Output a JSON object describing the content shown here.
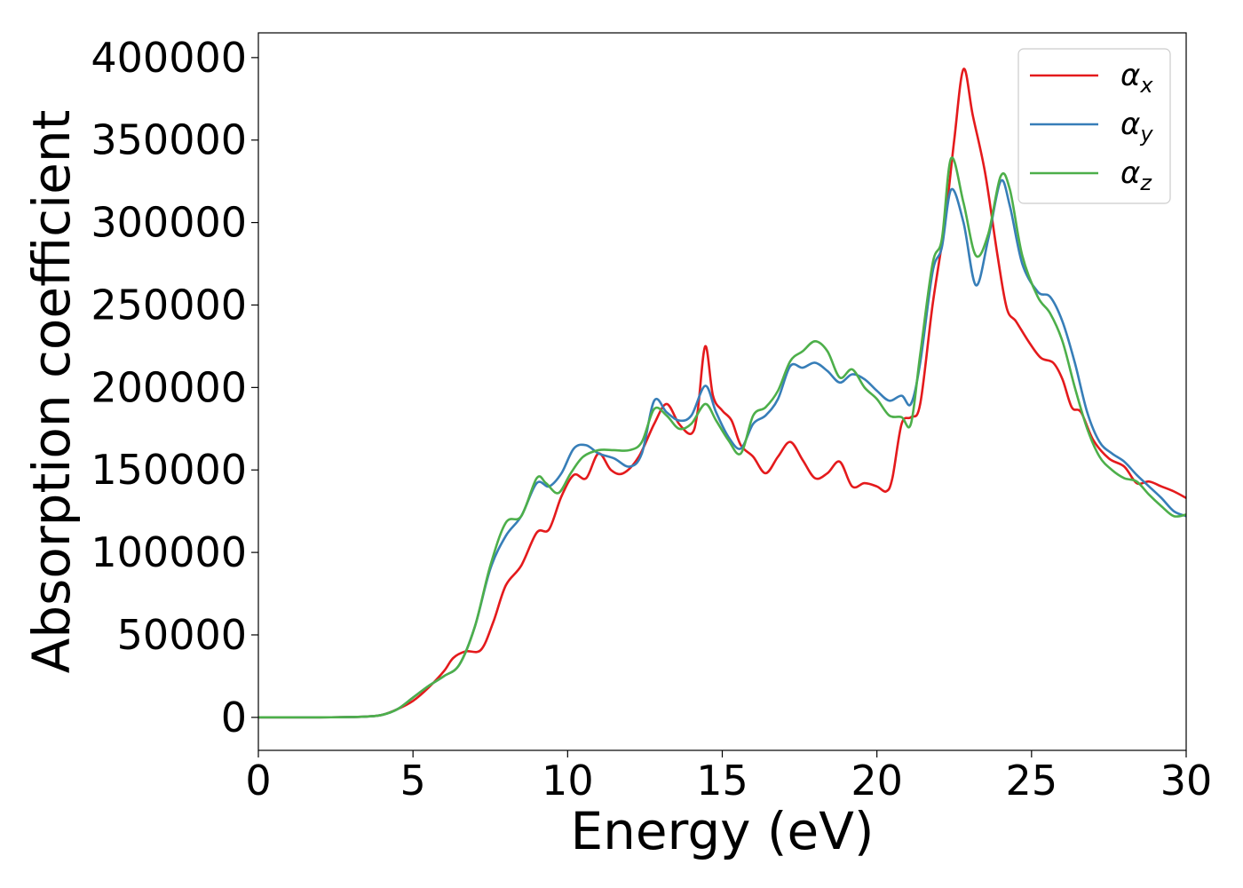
{
  "chart_data": {
    "type": "line",
    "xlabel": "Energy (eV)",
    "ylabel": "Absorption coefficient",
    "xlim": [
      0,
      30
    ],
    "ylim": [
      -20000,
      415000
    ],
    "xticks": [
      0,
      5,
      10,
      15,
      20,
      25,
      30
    ],
    "yticks": [
      0,
      50000,
      100000,
      150000,
      200000,
      250000,
      300000,
      350000,
      400000
    ],
    "xtick_labels": [
      "0",
      "5",
      "10",
      "15",
      "20",
      "25",
      "30"
    ],
    "ytick_labels": [
      "0",
      "50000",
      "100000",
      "150000",
      "200000",
      "250000",
      "300000",
      "350000",
      "400000"
    ],
    "grid": false,
    "legend_position": "top-right",
    "series": [
      {
        "name": "α_x",
        "symbol": "α",
        "subscript": "x",
        "color": "#e41a1c",
        "points": [
          [
            0,
            0
          ],
          [
            1,
            0
          ],
          [
            2,
            0
          ],
          [
            3,
            200
          ],
          [
            3.5,
            500
          ],
          [
            4,
            1500
          ],
          [
            4.5,
            5000
          ],
          [
            5,
            10000
          ],
          [
            5.5,
            18000
          ],
          [
            6,
            28000
          ],
          [
            6.3,
            36000
          ],
          [
            6.7,
            40000
          ],
          [
            7.2,
            41000
          ],
          [
            7.6,
            58000
          ],
          [
            8,
            80000
          ],
          [
            8.5,
            92000
          ],
          [
            9,
            112000
          ],
          [
            9.4,
            114000
          ],
          [
            9.8,
            134000
          ],
          [
            10.2,
            147000
          ],
          [
            10.6,
            145000
          ],
          [
            11,
            160000
          ],
          [
            11.4,
            150000
          ],
          [
            11.8,
            148000
          ],
          [
            12.3,
            158000
          ],
          [
            12.8,
            178000
          ],
          [
            13.2,
            190000
          ],
          [
            13.6,
            178000
          ],
          [
            14,
            172000
          ],
          [
            14.2,
            185000
          ],
          [
            14.45,
            225000
          ],
          [
            14.7,
            195000
          ],
          [
            15,
            186000
          ],
          [
            15.3,
            180000
          ],
          [
            15.6,
            165000
          ],
          [
            16,
            158000
          ],
          [
            16.4,
            148000
          ],
          [
            16.8,
            158000
          ],
          [
            17.2,
            167000
          ],
          [
            17.6,
            156000
          ],
          [
            18,
            145000
          ],
          [
            18.4,
            148000
          ],
          [
            18.8,
            155000
          ],
          [
            19.2,
            140000
          ],
          [
            19.6,
            142000
          ],
          [
            20,
            140000
          ],
          [
            20.3,
            137000
          ],
          [
            20.5,
            145000
          ],
          [
            20.8,
            178000
          ],
          [
            21.1,
            182000
          ],
          [
            21.4,
            190000
          ],
          [
            21.8,
            250000
          ],
          [
            22.2,
            300000
          ],
          [
            22.5,
            350000
          ],
          [
            22.8,
            393000
          ],
          [
            23.1,
            365000
          ],
          [
            23.5,
            330000
          ],
          [
            23.9,
            280000
          ],
          [
            24.2,
            248000
          ],
          [
            24.5,
            240000
          ],
          [
            24.9,
            228000
          ],
          [
            25.3,
            218000
          ],
          [
            25.7,
            215000
          ],
          [
            26,
            205000
          ],
          [
            26.3,
            188000
          ],
          [
            26.6,
            185000
          ],
          [
            27,
            168000
          ],
          [
            27.5,
            157000
          ],
          [
            28,
            152000
          ],
          [
            28.4,
            142000
          ],
          [
            28.8,
            143000
          ],
          [
            29.2,
            140000
          ],
          [
            29.6,
            137000
          ],
          [
            30,
            133000
          ]
        ]
      },
      {
        "name": "α_y",
        "symbol": "α",
        "subscript": "y",
        "color": "#377eb8",
        "points": [
          [
            0,
            0
          ],
          [
            1,
            0
          ],
          [
            2,
            0
          ],
          [
            3,
            200
          ],
          [
            3.5,
            500
          ],
          [
            4,
            1500
          ],
          [
            4.5,
            5000
          ],
          [
            5,
            12000
          ],
          [
            5.5,
            19000
          ],
          [
            6,
            25000
          ],
          [
            6.5,
            32000
          ],
          [
            7,
            55000
          ],
          [
            7.5,
            90000
          ],
          [
            8,
            110000
          ],
          [
            8.5,
            122000
          ],
          [
            9,
            142000
          ],
          [
            9.4,
            140000
          ],
          [
            9.8,
            148000
          ],
          [
            10.2,
            163000
          ],
          [
            10.6,
            165000
          ],
          [
            11,
            160000
          ],
          [
            11.5,
            157000
          ],
          [
            12,
            152000
          ],
          [
            12.4,
            160000
          ],
          [
            12.8,
            192000
          ],
          [
            13.2,
            185000
          ],
          [
            13.6,
            180000
          ],
          [
            14,
            183000
          ],
          [
            14.45,
            201000
          ],
          [
            14.8,
            185000
          ],
          [
            15.2,
            170000
          ],
          [
            15.6,
            163000
          ],
          [
            16,
            178000
          ],
          [
            16.4,
            183000
          ],
          [
            16.8,
            193000
          ],
          [
            17.2,
            213000
          ],
          [
            17.6,
            212000
          ],
          [
            18,
            215000
          ],
          [
            18.4,
            210000
          ],
          [
            18.8,
            203000
          ],
          [
            19.2,
            208000
          ],
          [
            19.6,
            205000
          ],
          [
            20,
            198000
          ],
          [
            20.4,
            192000
          ],
          [
            20.8,
            195000
          ],
          [
            21.1,
            190000
          ],
          [
            21.4,
            215000
          ],
          [
            21.8,
            270000
          ],
          [
            22.1,
            285000
          ],
          [
            22.4,
            320000
          ],
          [
            22.8,
            300000
          ],
          [
            23.2,
            262000
          ],
          [
            23.6,
            290000
          ],
          [
            24,
            325000
          ],
          [
            24.3,
            310000
          ],
          [
            24.7,
            275000
          ],
          [
            25.2,
            258000
          ],
          [
            25.6,
            255000
          ],
          [
            26,
            240000
          ],
          [
            26.4,
            215000
          ],
          [
            26.8,
            185000
          ],
          [
            27.2,
            167000
          ],
          [
            27.6,
            160000
          ],
          [
            28,
            155000
          ],
          [
            28.4,
            147000
          ],
          [
            28.8,
            140000
          ],
          [
            29.2,
            133000
          ],
          [
            29.6,
            125000
          ],
          [
            30,
            122000
          ]
        ]
      },
      {
        "name": "α_z",
        "symbol": "α",
        "subscript": "z",
        "color": "#4daf4a",
        "points": [
          [
            0,
            0
          ],
          [
            1,
            0
          ],
          [
            2,
            0
          ],
          [
            3,
            200
          ],
          [
            3.5,
            500
          ],
          [
            4,
            1500
          ],
          [
            4.5,
            5000
          ],
          [
            5,
            12000
          ],
          [
            5.5,
            19000
          ],
          [
            6,
            25000
          ],
          [
            6.5,
            32000
          ],
          [
            7,
            55000
          ],
          [
            7.5,
            92000
          ],
          [
            8,
            118000
          ],
          [
            8.5,
            122000
          ],
          [
            9,
            145000
          ],
          [
            9.3,
            142000
          ],
          [
            9.7,
            136000
          ],
          [
            10.1,
            148000
          ],
          [
            10.5,
            158000
          ],
          [
            11,
            162000
          ],
          [
            11.5,
            162000
          ],
          [
            12,
            162000
          ],
          [
            12.4,
            167000
          ],
          [
            12.8,
            187000
          ],
          [
            13.2,
            183000
          ],
          [
            13.6,
            175000
          ],
          [
            14,
            178000
          ],
          [
            14.45,
            190000
          ],
          [
            14.8,
            180000
          ],
          [
            15.2,
            168000
          ],
          [
            15.6,
            160000
          ],
          [
            16,
            183000
          ],
          [
            16.4,
            188000
          ],
          [
            16.8,
            198000
          ],
          [
            17.2,
            216000
          ],
          [
            17.6,
            222000
          ],
          [
            18,
            228000
          ],
          [
            18.4,
            222000
          ],
          [
            18.8,
            206000
          ],
          [
            19.2,
            211000
          ],
          [
            19.6,
            200000
          ],
          [
            20,
            193000
          ],
          [
            20.4,
            183000
          ],
          [
            20.8,
            182000
          ],
          [
            21.1,
            178000
          ],
          [
            21.4,
            220000
          ],
          [
            21.8,
            275000
          ],
          [
            22.1,
            290000
          ],
          [
            22.4,
            339000
          ],
          [
            22.8,
            312000
          ],
          [
            23.2,
            280000
          ],
          [
            23.6,
            293000
          ],
          [
            24,
            328000
          ],
          [
            24.3,
            320000
          ],
          [
            24.7,
            280000
          ],
          [
            25.2,
            255000
          ],
          [
            25.6,
            245000
          ],
          [
            26,
            228000
          ],
          [
            26.4,
            200000
          ],
          [
            26.8,
            175000
          ],
          [
            27.2,
            158000
          ],
          [
            27.6,
            150000
          ],
          [
            28,
            145000
          ],
          [
            28.4,
            143000
          ],
          [
            28.8,
            135000
          ],
          [
            29.2,
            128000
          ],
          [
            29.6,
            122000
          ],
          [
            30,
            123000
          ]
        ]
      }
    ]
  }
}
